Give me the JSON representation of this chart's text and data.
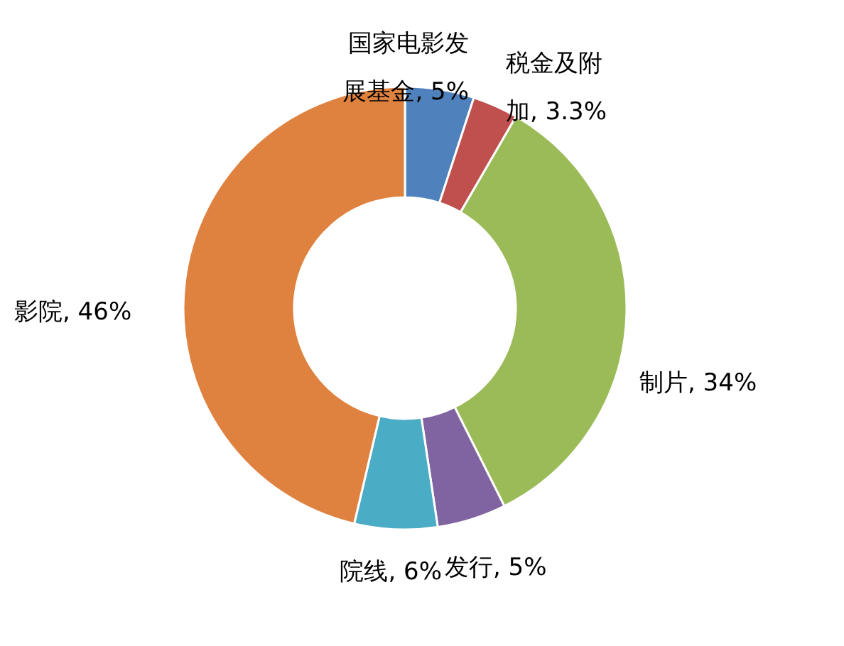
{
  "chart_data": {
    "type": "donut",
    "categories": [
      "国家电影发展基金",
      "税金及附加",
      "制片",
      "发行",
      "院线",
      "影院"
    ],
    "values": [
      5,
      3.3,
      34,
      5,
      6,
      46
    ],
    "value_labels": [
      "5%",
      "3.3%",
      "34%",
      "5%",
      "6%",
      "46%"
    ],
    "colors": [
      "#4f81bd",
      "#c0504d",
      "#9bbb59",
      "#8064a2",
      "#4bacc6",
      "#e0823f"
    ]
  }
}
